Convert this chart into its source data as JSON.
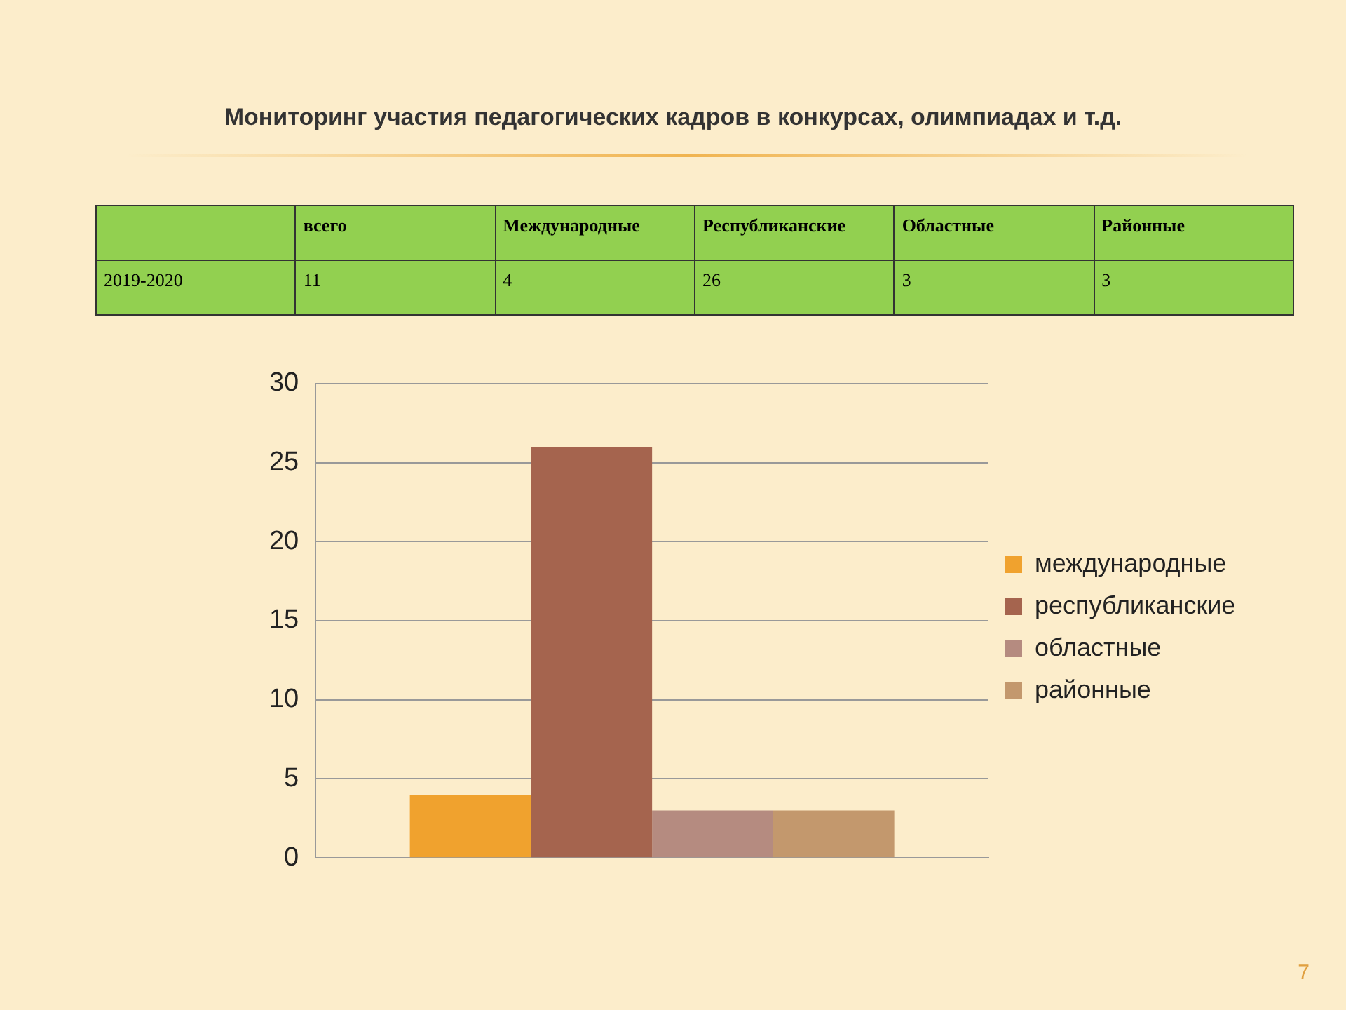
{
  "chart_data": {
    "type": "bar",
    "title": "Мониторинг участия педагогических кадров в конкурсах, олимпиадах и т.д.",
    "categories": [
      null
    ],
    "series": [
      {
        "name": "международные",
        "color": "#f0a22e",
        "values": [
          4
        ]
      },
      {
        "name": "республиканские",
        "color": "#a5644e",
        "values": [
          26
        ]
      },
      {
        "name": "областные",
        "color": "#b58b80",
        "values": [
          3
        ]
      },
      {
        "name": "районные",
        "color": "#c3986d",
        "values": [
          3
        ]
      }
    ],
    "ylim": [
      0,
      30
    ],
    "yticks": [
      0,
      5,
      10,
      15,
      20,
      25,
      30
    ],
    "grid": "y",
    "legend": "right",
    "annotations": [
      "всего",
      "Международные",
      "Республиканские",
      "Областные",
      "Районные",
      "2019-2020",
      "11",
      "4",
      "26",
      "3",
      "3",
      "7"
    ]
  }
}
